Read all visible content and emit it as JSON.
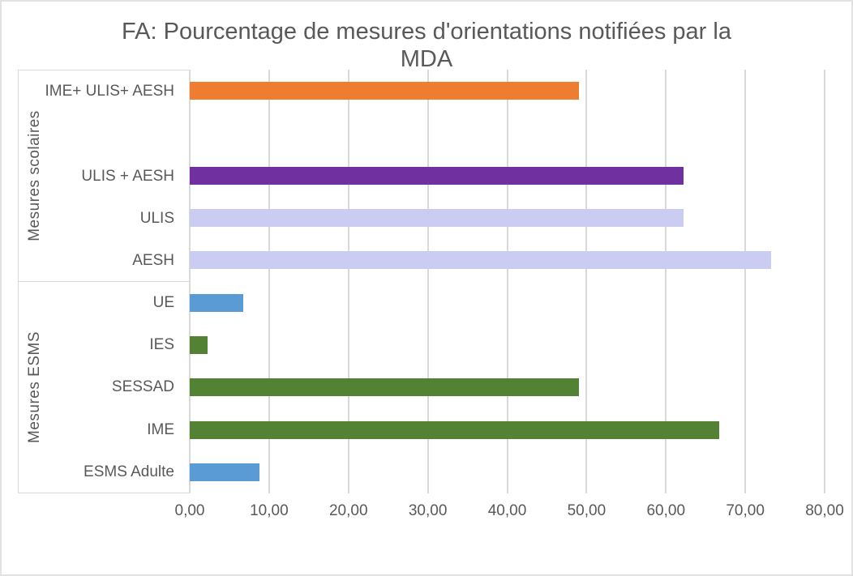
{
  "title": "FA: Pourcentage de mesures d'orientations notifiées par la MDA",
  "title_lines": [
    "FA: Pourcentage de mesures d'orientations notifiées par la",
    "MDA"
  ],
  "chart_data": {
    "type": "bar",
    "orientation": "horizontal",
    "title": "FA: Pourcentage de mesures d'orientations notifiées par la MDA",
    "xlabel": "",
    "ylabel": "",
    "xlim": [
      0,
      80
    ],
    "grid": true,
    "legend": false,
    "x_tick_values": [
      0,
      10,
      20,
      30,
      40,
      50,
      60,
      70,
      80
    ],
    "x_tick_labels": [
      "0,00",
      "10,00",
      "20,00",
      "30,00",
      "40,00",
      "50,00",
      "60,00",
      "70,00",
      "80,00"
    ],
    "groups": [
      {
        "label": "Mesures scolaires",
        "rows": [
          {
            "label": "IME+ ULIS+ AESH",
            "value": 49.0,
            "color": "#ED7D31"
          },
          {
            "label": "",
            "value": 0,
            "color": null
          },
          {
            "label": "ULIS + AESH",
            "value": 62.2,
            "color": "#7030A0"
          },
          {
            "label": "ULIS",
            "value": 62.2,
            "color": "#CBCCF2"
          },
          {
            "label": "AESH",
            "value": 73.3,
            "color": "#CBCCF2"
          }
        ]
      },
      {
        "label": "Mesures ESMS",
        "rows": [
          {
            "label": "UE",
            "value": 6.7,
            "color": "#5B9BD5"
          },
          {
            "label": "IES",
            "value": 2.2,
            "color": "#548235"
          },
          {
            "label": "SESSAD",
            "value": 49.0,
            "color": "#548235"
          },
          {
            "label": "IME",
            "value": 66.7,
            "color": "#548235"
          },
          {
            "label": "ESMS Adulte",
            "value": 8.8,
            "color": "#5B9BD5"
          }
        ]
      }
    ]
  },
  "colors": {
    "text": "#595959",
    "gridline": "#D9D9D9",
    "box_border": "#D9D9D9",
    "frame": "#E2E2E2",
    "background": "#FFFFFF",
    "orange": "#ED7D31",
    "dark_purple": "#7030A0",
    "lavender": "#CBCCF2",
    "blue": "#5B9BD5",
    "green": "#548235"
  }
}
